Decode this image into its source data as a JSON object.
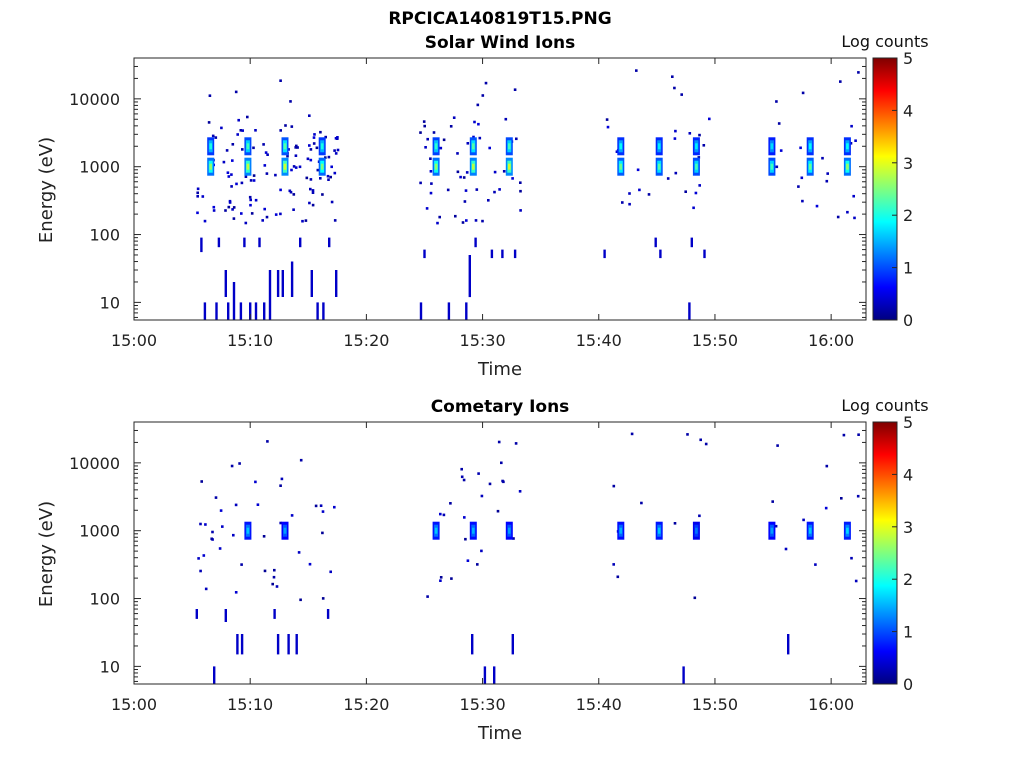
{
  "figure_title": "RPCICA140819T15.PNG",
  "colormap": {
    "title": "Log counts",
    "min": 0,
    "max": 5,
    "ticks": [
      "0",
      "1",
      "2",
      "3",
      "4",
      "5"
    ],
    "stops": [
      "#00007f",
      "#0000ff",
      "#007fff",
      "#00ffff",
      "#7fff7f",
      "#ffff00",
      "#ff7f00",
      "#ff0000",
      "#7f0000"
    ]
  },
  "chart_data": [
    {
      "type": "heatmap",
      "title": "Solar Wind Ions",
      "xlabel": "Time",
      "ylabel": "Energy (eV)",
      "x_unit": "minutes after 15:00",
      "xlim": [
        0,
        63
      ],
      "x_ticks": [
        0,
        10,
        20,
        30,
        40,
        50,
        60
      ],
      "x_tick_labels": [
        "15:00",
        "15:10",
        "15:20",
        "15:30",
        "15:40",
        "15:50",
        "16:00"
      ],
      "yscale": "log",
      "ylim": [
        5.5,
        40000
      ],
      "y_ticks": [
        10,
        100,
        1000,
        10000
      ],
      "y_tick_labels": [
        "10",
        "100",
        "1000",
        "10000"
      ],
      "clim": [
        0,
        5
      ],
      "clusters": [
        {
          "t": 6.6,
          "e": 1000,
          "v": 2.6
        },
        {
          "t": 6.6,
          "e": 2000,
          "v": 2.0
        },
        {
          "t": 9.8,
          "e": 1000,
          "v": 2.8
        },
        {
          "t": 9.8,
          "e": 2000,
          "v": 2.2
        },
        {
          "t": 13.0,
          "e": 1000,
          "v": 2.9
        },
        {
          "t": 13.0,
          "e": 2000,
          "v": 2.3
        },
        {
          "t": 16.2,
          "e": 1000,
          "v": 2.5
        },
        {
          "t": 16.2,
          "e": 2000,
          "v": 2.0
        },
        {
          "t": 26.0,
          "e": 1000,
          "v": 2.6
        },
        {
          "t": 26.0,
          "e": 2000,
          "v": 2.1
        },
        {
          "t": 29.2,
          "e": 1000,
          "v": 2.8
        },
        {
          "t": 29.2,
          "e": 2000,
          "v": 2.3
        },
        {
          "t": 32.3,
          "e": 1000,
          "v": 2.9
        },
        {
          "t": 32.3,
          "e": 2000,
          "v": 2.2
        },
        {
          "t": 41.9,
          "e": 1000,
          "v": 2.4
        },
        {
          "t": 41.9,
          "e": 2000,
          "v": 1.9
        },
        {
          "t": 45.2,
          "e": 1000,
          "v": 2.3
        },
        {
          "t": 45.2,
          "e": 2000,
          "v": 1.8
        },
        {
          "t": 48.4,
          "e": 1000,
          "v": 2.2
        },
        {
          "t": 48.4,
          "e": 2000,
          "v": 1.8
        },
        {
          "t": 54.9,
          "e": 1000,
          "v": 2.2
        },
        {
          "t": 54.9,
          "e": 2000,
          "v": 1.7
        },
        {
          "t": 58.2,
          "e": 1000,
          "v": 2.4
        },
        {
          "t": 58.2,
          "e": 2000,
          "v": 1.9
        },
        {
          "t": 61.4,
          "e": 1000,
          "v": 2.6
        },
        {
          "t": 61.4,
          "e": 2000,
          "v": 1.9
        }
      ],
      "columns": [
        {
          "t": 5.7,
          "e1": 55,
          "e2": 90
        },
        {
          "t": 6.0,
          "e1": 5.5,
          "e2": 10
        },
        {
          "t": 7.0,
          "e1": 5.5,
          "e2": 10
        },
        {
          "t": 7.2,
          "e1": 65,
          "e2": 90
        },
        {
          "t": 7.8,
          "e1": 12,
          "e2": 30
        },
        {
          "t": 8.0,
          "e1": 5.5,
          "e2": 10
        },
        {
          "t": 8.5,
          "e1": 5.5,
          "e2": 20
        },
        {
          "t": 9.1,
          "e1": 5.5,
          "e2": 10
        },
        {
          "t": 9.4,
          "e1": 65,
          "e2": 90
        },
        {
          "t": 9.9,
          "e1": 5.5,
          "e2": 10
        },
        {
          "t": 10.4,
          "e1": 5.5,
          "e2": 10
        },
        {
          "t": 10.7,
          "e1": 65,
          "e2": 90
        },
        {
          "t": 11.1,
          "e1": 5.5,
          "e2": 10
        },
        {
          "t": 11.6,
          "e1": 5.5,
          "e2": 30
        },
        {
          "t": 12.3,
          "e1": 12,
          "e2": 30
        },
        {
          "t": 12.7,
          "e1": 12,
          "e2": 30
        },
        {
          "t": 13.5,
          "e1": 12,
          "e2": 40
        },
        {
          "t": 14.2,
          "e1": 65,
          "e2": 90
        },
        {
          "t": 15.2,
          "e1": 12,
          "e2": 30
        },
        {
          "t": 15.7,
          "e1": 5.5,
          "e2": 10
        },
        {
          "t": 16.2,
          "e1": 5.5,
          "e2": 10
        },
        {
          "t": 16.7,
          "e1": 65,
          "e2": 90
        },
        {
          "t": 17.3,
          "e1": 12,
          "e2": 30
        },
        {
          "t": 24.6,
          "e1": 5.5,
          "e2": 10
        },
        {
          "t": 24.9,
          "e1": 45,
          "e2": 60
        },
        {
          "t": 27.0,
          "e1": 5.5,
          "e2": 10
        },
        {
          "t": 28.5,
          "e1": 5.5,
          "e2": 10
        },
        {
          "t": 28.8,
          "e1": 12,
          "e2": 50
        },
        {
          "t": 29.3,
          "e1": 65,
          "e2": 90
        },
        {
          "t": 30.7,
          "e1": 45,
          "e2": 60
        },
        {
          "t": 31.6,
          "e1": 45,
          "e2": 60
        },
        {
          "t": 32.7,
          "e1": 45,
          "e2": 60
        },
        {
          "t": 40.4,
          "e1": 45,
          "e2": 60
        },
        {
          "t": 44.8,
          "e1": 65,
          "e2": 90
        },
        {
          "t": 45.2,
          "e1": 45,
          "e2": 60
        },
        {
          "t": 47.7,
          "e1": 5.5,
          "e2": 10
        },
        {
          "t": 47.9,
          "e1": 65,
          "e2": 90
        },
        {
          "t": 49.0,
          "e1": 45,
          "e2": 60
        }
      ],
      "scatter_t_range": [
        5.3,
        17.5,
        24.5,
        33.5,
        40.5,
        49.5,
        54.5,
        62.5
      ],
      "scatter_e_range": [
        150,
        6000
      ]
    },
    {
      "type": "heatmap",
      "title": "Cometary Ions",
      "xlabel": "Time",
      "ylabel": "Energy (eV)",
      "x_unit": "minutes after 15:00",
      "xlim": [
        0,
        63
      ],
      "x_ticks": [
        0,
        10,
        20,
        30,
        40,
        50,
        60
      ],
      "x_tick_labels": [
        "15:00",
        "15:10",
        "15:20",
        "15:30",
        "15:40",
        "15:50",
        "16:00"
      ],
      "yscale": "log",
      "ylim": [
        5.5,
        40000
      ],
      "y_ticks": [
        10,
        100,
        1000,
        10000
      ],
      "y_tick_labels": [
        "10",
        "100",
        "1000",
        "10000"
      ],
      "clim": [
        0,
        5
      ],
      "clusters": [
        {
          "t": 9.8,
          "e": 1000,
          "v": 1.6
        },
        {
          "t": 13.0,
          "e": 1000,
          "v": 1.4
        },
        {
          "t": 26.0,
          "e": 1000,
          "v": 1.6
        },
        {
          "t": 29.2,
          "e": 1000,
          "v": 1.5
        },
        {
          "t": 32.3,
          "e": 1000,
          "v": 1.4
        },
        {
          "t": 41.9,
          "e": 1000,
          "v": 1.5
        },
        {
          "t": 45.2,
          "e": 1000,
          "v": 1.6
        },
        {
          "t": 48.4,
          "e": 1000,
          "v": 1.2
        },
        {
          "t": 54.9,
          "e": 1000,
          "v": 1.4
        },
        {
          "t": 58.2,
          "e": 1000,
          "v": 1.6
        },
        {
          "t": 61.4,
          "e": 1000,
          "v": 1.7
        }
      ],
      "columns": [
        {
          "t": 5.3,
          "e1": 50,
          "e2": 70
        },
        {
          "t": 6.8,
          "e1": 5.5,
          "e2": 10
        },
        {
          "t": 7.8,
          "e1": 45,
          "e2": 70
        },
        {
          "t": 8.8,
          "e1": 15,
          "e2": 30
        },
        {
          "t": 9.2,
          "e1": 15,
          "e2": 30
        },
        {
          "t": 12.0,
          "e1": 50,
          "e2": 70
        },
        {
          "t": 12.3,
          "e1": 15,
          "e2": 30
        },
        {
          "t": 13.2,
          "e1": 15,
          "e2": 30
        },
        {
          "t": 13.9,
          "e1": 15,
          "e2": 30
        },
        {
          "t": 16.6,
          "e1": 50,
          "e2": 70
        },
        {
          "t": 29.0,
          "e1": 15,
          "e2": 30
        },
        {
          "t": 30.1,
          "e1": 5.5,
          "e2": 10
        },
        {
          "t": 30.9,
          "e1": 5.5,
          "e2": 10
        },
        {
          "t": 32.5,
          "e1": 15,
          "e2": 30
        },
        {
          "t": 47.2,
          "e1": 5.5,
          "e2": 10
        },
        {
          "t": 56.2,
          "e1": 15,
          "e2": 30
        }
      ],
      "scatter_t_range": [
        5.3,
        17.5,
        24.5,
        33.5,
        40.5,
        49.5,
        54.5,
        62.5
      ],
      "scatter_e_range": [
        100,
        8000
      ]
    }
  ]
}
